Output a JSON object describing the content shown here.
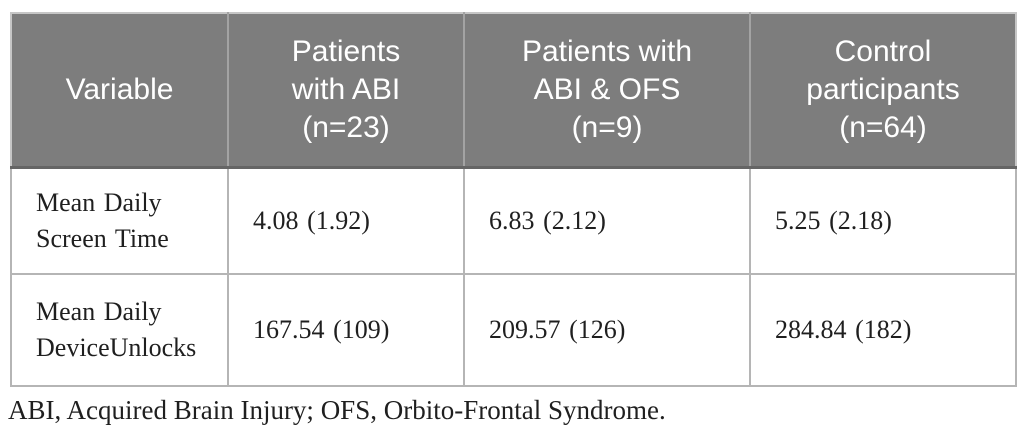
{
  "table": {
    "columns": [
      {
        "label": "Variable"
      },
      {
        "label": "Patients\nwith ABI\n(n=23)"
      },
      {
        "label": "Patients with\nABI & OFS\n(n=9)"
      },
      {
        "label": "Control\nparticipants\n(n=64)"
      }
    ],
    "rows": [
      {
        "variable": "Mean Daily\nScreen Time",
        "values": [
          "4.08 (1.92)",
          "6.83 (2.12)",
          "5.25 (2.18)"
        ]
      },
      {
        "variable": "Mean Daily\nDeviceUnlocks",
        "values": [
          "167.54 (109)",
          "209.57 (126)",
          "284.84 (182)"
        ]
      }
    ],
    "footnote": "ABI, Acquired Brain Injury; OFS, Orbito-Frontal Syndrome."
  },
  "colors": {
    "header_bg": "#7d7d7d",
    "header_text": "#ffffff",
    "header_divider": "#a3a3a3",
    "header_bottom_border": "#656565",
    "body_text": "#1f1f1f",
    "border_inner": "#b5b5b5",
    "border_outer": "#c6c6c6"
  }
}
